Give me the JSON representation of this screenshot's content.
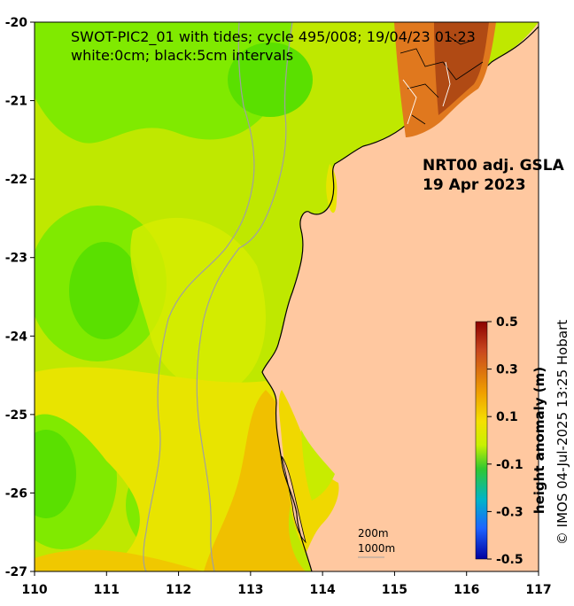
{
  "title": {
    "line1": "SWOT-PIC2_01 with tides; cycle 495/008; 19/04/23 01:23",
    "line2": "white:0cm; black:5cm intervals"
  },
  "product": {
    "line1": "NRT00 adj. GSLA",
    "line2": "19 Apr 2023"
  },
  "scale_bar": {
    "top": "200m",
    "bottom": "1000m"
  },
  "credit": "© IMOS 04-Jul-2025 13:25 Hobart",
  "colorbar": {
    "label": "height anomaly (m)",
    "ticks": [
      "0.5",
      "0.3",
      "0.1",
      "-0.1",
      "-0.3",
      "-0.5"
    ],
    "range": [
      -0.5,
      0.5
    ],
    "colors": [
      "#8b0000",
      "#c8461e",
      "#f0a000",
      "#f5e000",
      "#c8f000",
      "#30c830",
      "#00b4c8",
      "#1e64ff",
      "#0000a0"
    ]
  },
  "axes": {
    "x_ticks": [
      "110",
      "111",
      "112",
      "113",
      "114",
      "115",
      "116",
      "117"
    ],
    "y_ticks": [
      "-20",
      "-21",
      "-22",
      "-23",
      "-24",
      "-25",
      "-26",
      "-27"
    ],
    "lon_range": [
      110,
      117
    ],
    "lat_range": [
      -27,
      -20
    ]
  },
  "colors": {
    "land": "#ffc8a0",
    "sea_base": "#bfe800",
    "green_high": "#5ae000",
    "green_mid": "#80ea00",
    "yellow": "#e8e400",
    "orange": "#f0c000",
    "swot_dark": "#b04a14",
    "swot_mid": "#e0781e"
  }
}
